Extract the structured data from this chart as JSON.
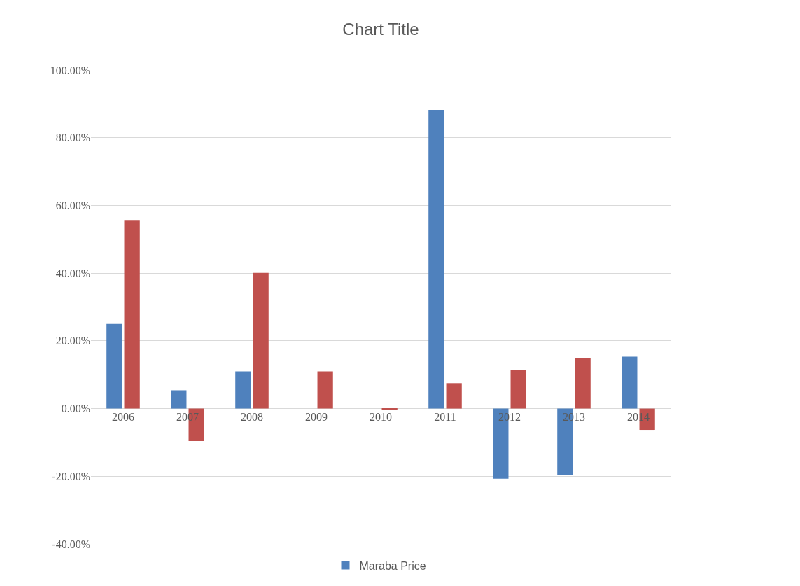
{
  "chart_data": {
    "type": "bar",
    "title": "Chart Title",
    "categories": [
      "2006",
      "2007",
      "2008",
      "2009",
      "2010",
      "2011",
      "2012",
      "2013",
      "2014"
    ],
    "series": [
      {
        "name": "Maraba Price",
        "color": "#4f81bd",
        "values": [
          25,
          5.4,
          11,
          0,
          0,
          88.2,
          -20.7,
          -19.7,
          15.3
        ]
      },
      {
        "color": "#c0504d",
        "values": [
          55.7,
          -9.6,
          40.1,
          11,
          -0.3,
          7.5,
          11.5,
          15,
          -6.3
        ]
      }
    ],
    "ylim": [
      -40,
      100
    ],
    "yticks": [
      {
        "value": -40,
        "label": "-40.00%"
      },
      {
        "value": -20,
        "label": "-20.00%"
      },
      {
        "value": 0,
        "label": "0.00%"
      },
      {
        "value": 20,
        "label": "20.00%"
      },
      {
        "value": 40,
        "label": "40.00%"
      },
      {
        "value": 60,
        "label": "60.00%"
      },
      {
        "value": 80,
        "label": "80.00%"
      },
      {
        "value": 100,
        "label": "100.00%"
      }
    ],
    "grid": "y",
    "legend": "bottom"
  }
}
